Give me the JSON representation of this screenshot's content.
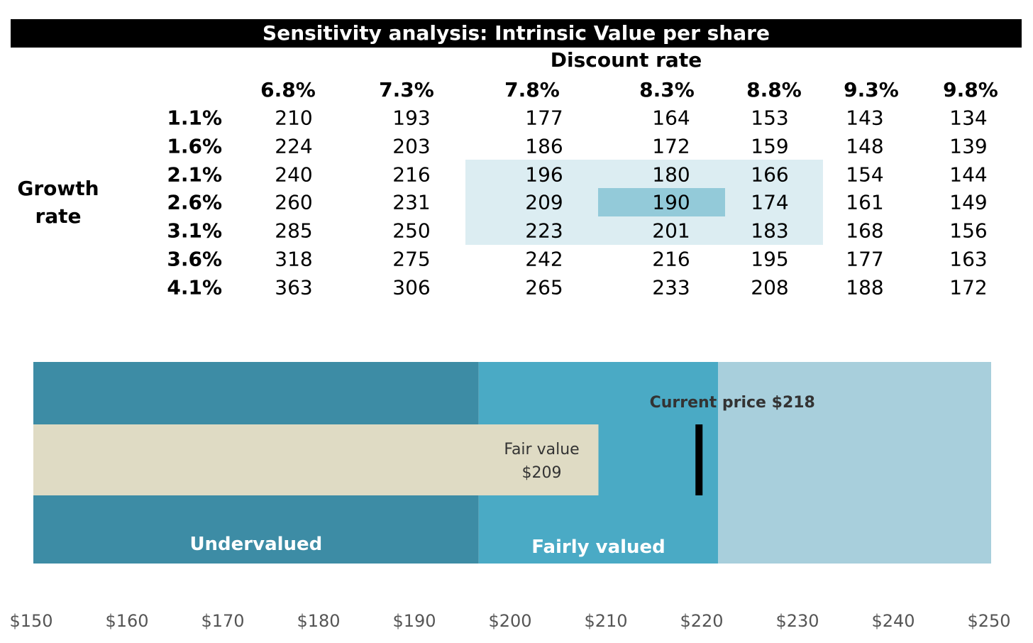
{
  "title": "Sensitivity analysis: Intrinsic Value per share",
  "chart_data": [
    {
      "type": "table",
      "title": "Sensitivity analysis: Intrinsic Value per share",
      "column_axis_label": "Discount rate",
      "row_axis_label": "Growth rate",
      "columns": [
        "6.8%",
        "7.3%",
        "7.8%",
        "8.3%",
        "8.8%",
        "9.3%",
        "9.8%"
      ],
      "rows": [
        "1.1%",
        "1.6%",
        "2.1%",
        "2.6%",
        "3.1%",
        "3.6%",
        "4.1%"
      ],
      "values": [
        [
          210,
          193,
          177,
          164,
          153,
          143,
          134
        ],
        [
          224,
          203,
          186,
          172,
          159,
          148,
          139
        ],
        [
          240,
          216,
          196,
          180,
          166,
          154,
          144
        ],
        [
          260,
          231,
          209,
          190,
          174,
          161,
          149
        ],
        [
          285,
          250,
          223,
          201,
          183,
          168,
          156
        ],
        [
          318,
          275,
          242,
          216,
          195,
          177,
          163
        ],
        [
          363,
          306,
          265,
          233,
          208,
          188,
          172
        ]
      ],
      "highlight_range": {
        "rows": [
          "2.1%",
          "3.1%"
        ],
        "columns": [
          "7.8%",
          "8.8%"
        ]
      },
      "highlight_center": {
        "row": "2.6%",
        "column": "8.3%"
      }
    },
    {
      "type": "bullet",
      "x_range": [
        150,
        250
      ],
      "ticks": [
        150,
        160,
        170,
        180,
        190,
        200,
        210,
        220,
        230,
        240,
        250
      ],
      "tick_labels": [
        "$150",
        "$160",
        "$170",
        "$180",
        "$190",
        "$200",
        "$210",
        "$220",
        "$230",
        "$240",
        "$250"
      ],
      "zones": [
        {
          "name": "Undervalued",
          "from": 150,
          "to": 196.5,
          "color": "#3d8ca5"
        },
        {
          "name": "Fairly valued",
          "from": 196.5,
          "to": 221.5,
          "color": "#4aaac5"
        },
        {
          "name": "",
          "from": 221.5,
          "to": 250,
          "color": "#a8cfdc"
        }
      ],
      "fair_value": {
        "label": "Fair value",
        "value_label": "$209",
        "value": 209,
        "color": "#dfdbc4"
      },
      "current_price": {
        "label": "Current price $218",
        "value": 218,
        "marker_value": 219.5
      }
    }
  ]
}
